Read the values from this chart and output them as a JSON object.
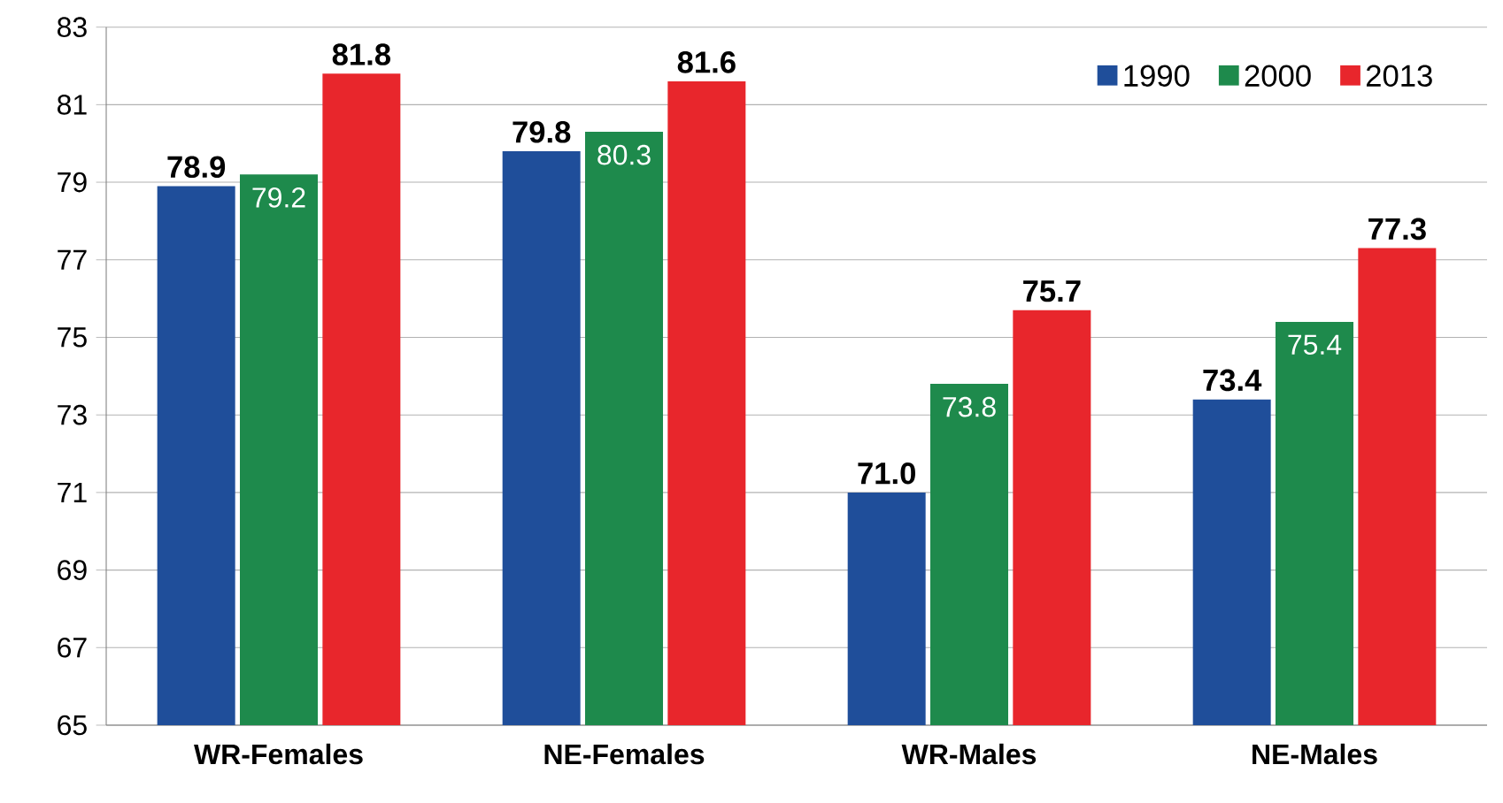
{
  "chart_data": {
    "type": "bar",
    "categories": [
      "WR-Females",
      "NE-Females",
      "WR-Males",
      "NE-Males"
    ],
    "series": [
      {
        "name": "1990",
        "color": "#1f4e9a",
        "values": [
          78.9,
          79.8,
          71.0,
          73.4
        ],
        "value_labels": [
          "78.9",
          "79.8",
          "71.0",
          "73.4"
        ]
      },
      {
        "name": "2000",
        "color": "#1e8a4c",
        "values": [
          79.2,
          80.3,
          73.8,
          75.4
        ],
        "value_labels": [
          "79.2",
          "80.3",
          "73.8",
          "75.4"
        ]
      },
      {
        "name": "2013",
        "color": "#e8262c",
        "values": [
          81.8,
          81.6,
          75.7,
          77.3
        ],
        "value_labels": [
          "81.8",
          "81.6",
          "75.7",
          "77.3"
        ]
      }
    ],
    "ylim": [
      65,
      83
    ],
    "yticks": [
      65,
      67,
      69,
      71,
      73,
      75,
      77,
      79,
      81,
      83
    ],
    "grid": "y",
    "legend": "top right"
  }
}
